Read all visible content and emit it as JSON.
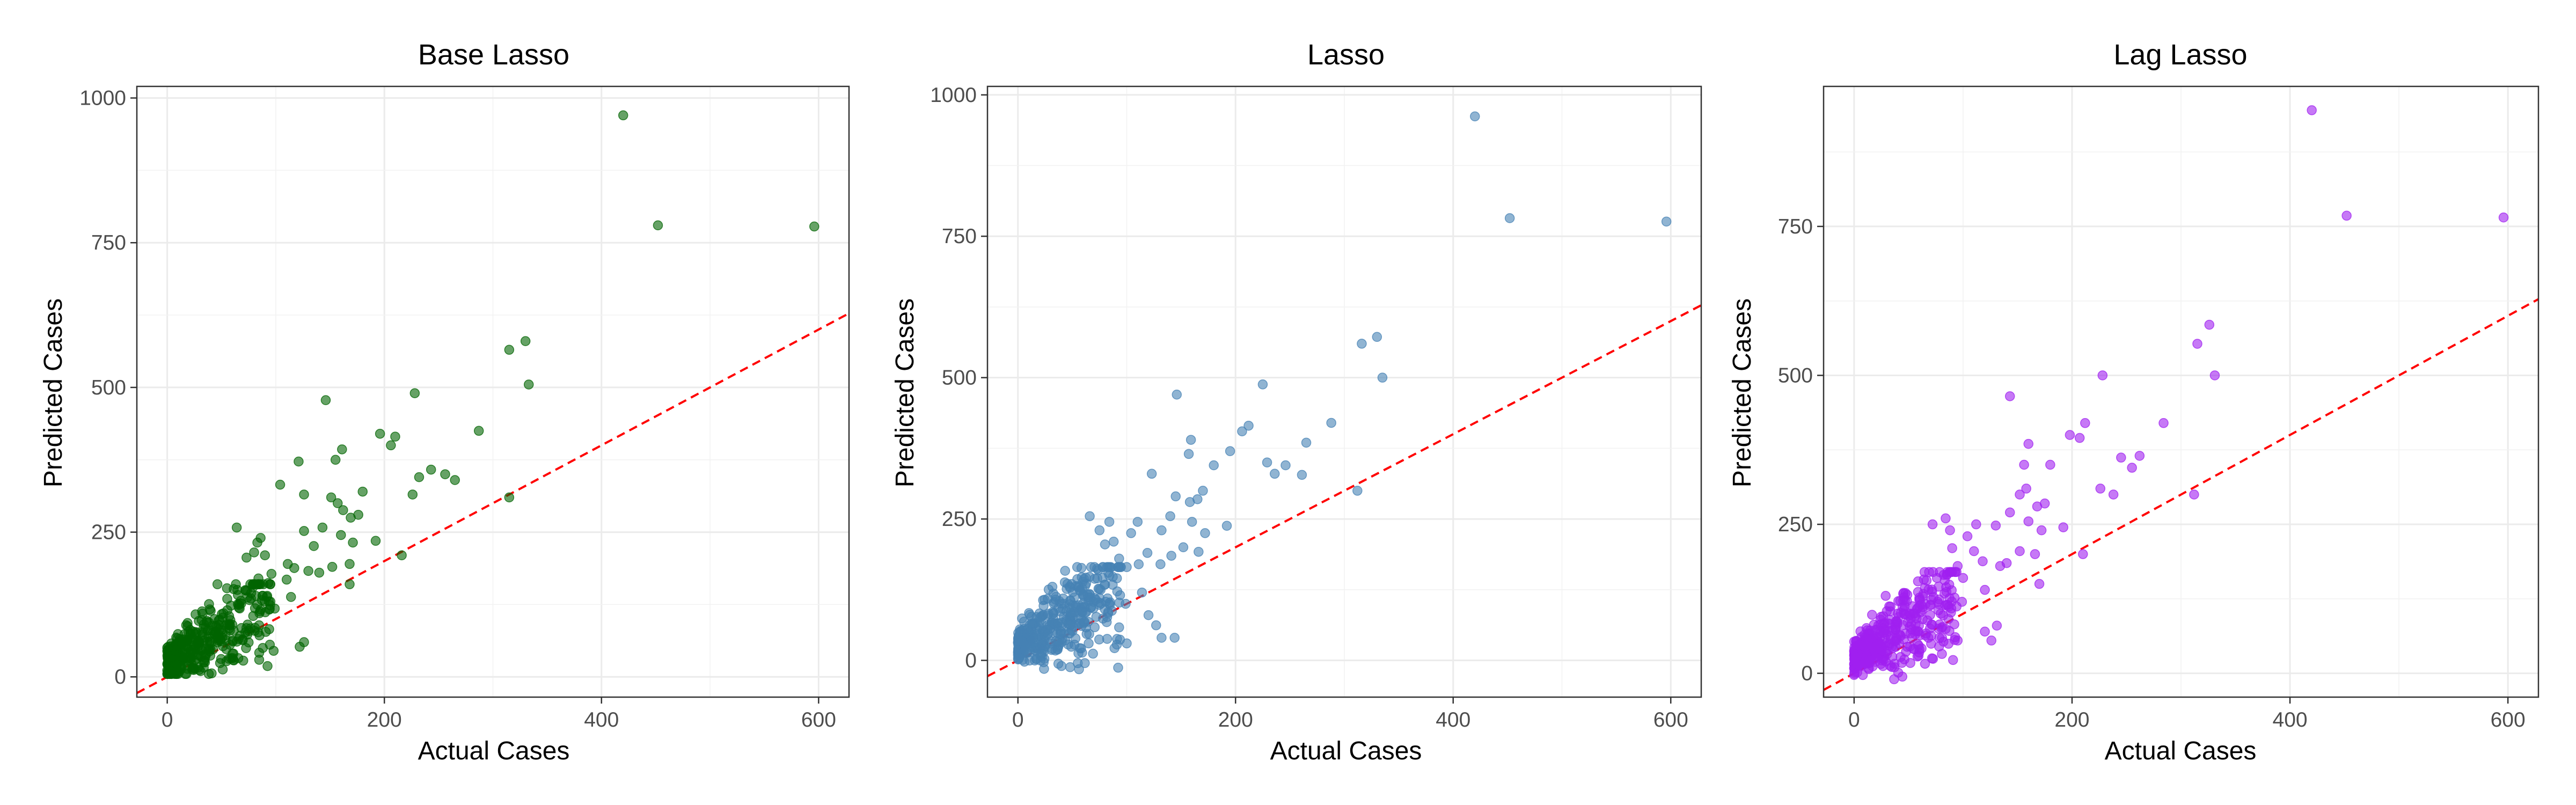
{
  "chart_data": [
    {
      "type": "scatter",
      "title": "Base Lasso",
      "xlabel": "Actual Cases",
      "ylabel": "Predicted Cases",
      "xlim": [
        -28,
        628
      ],
      "ylim": [
        -35,
        1020
      ],
      "x_ticks": [
        0,
        200,
        400,
        600
      ],
      "y_ticks": [
        0,
        250,
        500,
        750,
        1000
      ],
      "grid": true,
      "point_color": "#006400",
      "reference_line": {
        "slope": 1,
        "intercept": 0,
        "color": "#ff0000",
        "style": "dashed"
      },
      "points": [
        [
          420,
          970
        ],
        [
          452,
          780
        ],
        [
          596,
          778
        ],
        [
          330,
          580
        ],
        [
          315,
          565
        ],
        [
          333,
          505
        ],
        [
          315,
          310
        ],
        [
          228,
          490
        ],
        [
          210,
          415
        ],
        [
          196,
          420
        ],
        [
          206,
          400
        ],
        [
          287,
          425
        ],
        [
          265,
          340
        ],
        [
          256,
          350
        ],
        [
          243,
          358
        ],
        [
          232,
          345
        ],
        [
          226,
          315
        ],
        [
          216,
          210
        ],
        [
          146,
          478
        ],
        [
          161,
          393
        ],
        [
          155,
          375
        ],
        [
          121,
          372
        ],
        [
          126,
          315
        ],
        [
          180,
          320
        ],
        [
          176,
          280
        ],
        [
          169,
          275
        ],
        [
          157,
          300
        ],
        [
          162,
          288
        ],
        [
          151,
          310
        ],
        [
          143,
          258
        ],
        [
          126,
          252
        ],
        [
          135,
          226
        ],
        [
          160,
          245
        ],
        [
          171,
          232
        ],
        [
          192,
          235
        ],
        [
          168,
          195
        ],
        [
          152,
          190
        ],
        [
          130,
          183
        ],
        [
          140,
          180
        ],
        [
          117,
          188
        ],
        [
          111,
          195
        ],
        [
          110,
          168
        ],
        [
          96,
          178
        ],
        [
          93,
          162
        ],
        [
          79,
          155
        ],
        [
          84,
          170
        ],
        [
          72,
          150
        ],
        [
          88,
          140
        ],
        [
          104,
          332
        ],
        [
          86,
          240
        ],
        [
          83,
          232
        ],
        [
          64,
          258
        ],
        [
          73,
          206
        ],
        [
          80,
          215
        ],
        [
          90,
          210
        ],
        [
          168,
          160
        ],
        [
          114,
          138
        ],
        [
          99,
          118
        ],
        [
          98,
          45
        ],
        [
          122,
          52
        ],
        [
          126,
          60
        ],
        [
          88,
          50
        ],
        [
          70,
          28
        ],
        [
          60,
          40
        ]
      ],
      "dense_cluster": {
        "x_range": [
          0,
          95
        ],
        "y_min": 5,
        "y_max": 160,
        "count": 380
      }
    },
    {
      "type": "scatter",
      "title": "Lasso",
      "xlabel": "Actual Cases",
      "ylabel": "Predicted Cases",
      "xlim": [
        -28,
        628
      ],
      "ylim": [
        -65,
        1015
      ],
      "x_ticks": [
        0,
        200,
        400,
        600
      ],
      "y_ticks": [
        0,
        250,
        500,
        750,
        1000
      ],
      "grid": true,
      "point_color": "#4682b4",
      "reference_line": {
        "slope": 1,
        "intercept": 0,
        "color": "#ff0000",
        "style": "dashed"
      },
      "points": [
        [
          420,
          962
        ],
        [
          452,
          782
        ],
        [
          596,
          776
        ],
        [
          316,
          560
        ],
        [
          330,
          572
        ],
        [
          335,
          500
        ],
        [
          312,
          300
        ],
        [
          225,
          488
        ],
        [
          206,
          405
        ],
        [
          212,
          415
        ],
        [
          195,
          370
        ],
        [
          288,
          420
        ],
        [
          265,
          385
        ],
        [
          246,
          345
        ],
        [
          236,
          330
        ],
        [
          229,
          350
        ],
        [
          261,
          328
        ],
        [
          146,
          470
        ],
        [
          159,
          390
        ],
        [
          157,
          365
        ],
        [
          123,
          330
        ],
        [
          180,
          345
        ],
        [
          170,
          300
        ],
        [
          165,
          285
        ],
        [
          158,
          280
        ],
        [
          145,
          290
        ],
        [
          140,
          255
        ],
        [
          132,
          230
        ],
        [
          160,
          245
        ],
        [
          172,
          225
        ],
        [
          192,
          238
        ],
        [
          166,
          192
        ],
        [
          152,
          200
        ],
        [
          131,
          170
        ],
        [
          141,
          185
        ],
        [
          119,
          190
        ],
        [
          111,
          170
        ],
        [
          100,
          165
        ],
        [
          93,
          180
        ],
        [
          84,
          150
        ],
        [
          73,
          145
        ],
        [
          88,
          210
        ],
        [
          84,
          245
        ],
        [
          66,
          255
        ],
        [
          75,
          230
        ],
        [
          80,
          205
        ],
        [
          104,
          225
        ],
        [
          110,
          245
        ],
        [
          99,
          100
        ],
        [
          114,
          120
        ],
        [
          120,
          80
        ],
        [
          127,
          62
        ],
        [
          132,
          40
        ],
        [
          144,
          40
        ],
        [
          100,
          30
        ],
        [
          82,
          38
        ],
        [
          65,
          30
        ],
        [
          55,
          -5
        ],
        [
          48,
          -12
        ],
        [
          40,
          -10
        ],
        [
          24,
          -15
        ]
      ],
      "dense_cluster": {
        "x_range": [
          0,
          95
        ],
        "y_min": -20,
        "y_max": 165,
        "count": 380
      }
    },
    {
      "type": "scatter",
      "title": "Lag Lasso",
      "xlabel": "Actual Cases",
      "ylabel": "Predicted Cases",
      "xlim": [
        -28,
        628
      ],
      "ylim": [
        -40,
        985
      ],
      "x_ticks": [
        0,
        200,
        400,
        600
      ],
      "y_ticks": [
        0,
        250,
        500,
        750
      ],
      "grid": true,
      "point_color": "#a020f0",
      "reference_line": {
        "slope": 1,
        "intercept": 0,
        "color": "#ff0000",
        "style": "dashed"
      },
      "points": [
        [
          420,
          945
        ],
        [
          452,
          768
        ],
        [
          596,
          765
        ],
        [
          326,
          585
        ],
        [
          315,
          553
        ],
        [
          331,
          500
        ],
        [
          312,
          300
        ],
        [
          228,
          500
        ],
        [
          207,
          395
        ],
        [
          212,
          420
        ],
        [
          198,
          400
        ],
        [
          284,
          420
        ],
        [
          262,
          365
        ],
        [
          255,
          345
        ],
        [
          245,
          362
        ],
        [
          238,
          300
        ],
        [
          226,
          310
        ],
        [
          210,
          200
        ],
        [
          143,
          465
        ],
        [
          160,
          385
        ],
        [
          156,
          350
        ],
        [
          180,
          350
        ],
        [
          175,
          285
        ],
        [
          168,
          280
        ],
        [
          158,
          310
        ],
        [
          152,
          300
        ],
        [
          143,
          270
        ],
        [
          130,
          248
        ],
        [
          160,
          255
        ],
        [
          172,
          240
        ],
        [
          192,
          245
        ],
        [
          166,
          200
        ],
        [
          152,
          205
        ],
        [
          134,
          180
        ],
        [
          140,
          185
        ],
        [
          118,
          188
        ],
        [
          110,
          205
        ],
        [
          100,
          160
        ],
        [
          95,
          180
        ],
        [
          85,
          165
        ],
        [
          76,
          160
        ],
        [
          88,
          240
        ],
        [
          84,
          260
        ],
        [
          72,
          250
        ],
        [
          90,
          210
        ],
        [
          104,
          230
        ],
        [
          112,
          250
        ],
        [
          170,
          150
        ],
        [
          120,
          140
        ],
        [
          99,
          120
        ],
        [
          86,
          115
        ],
        [
          120,
          70
        ],
        [
          126,
          55
        ],
        [
          131,
          80
        ],
        [
          95,
          55
        ],
        [
          78,
          45
        ],
        [
          60,
          40
        ]
      ],
      "dense_cluster": {
        "x_range": [
          0,
          95
        ],
        "y_min": -25,
        "y_max": 170,
        "count": 380
      }
    }
  ]
}
